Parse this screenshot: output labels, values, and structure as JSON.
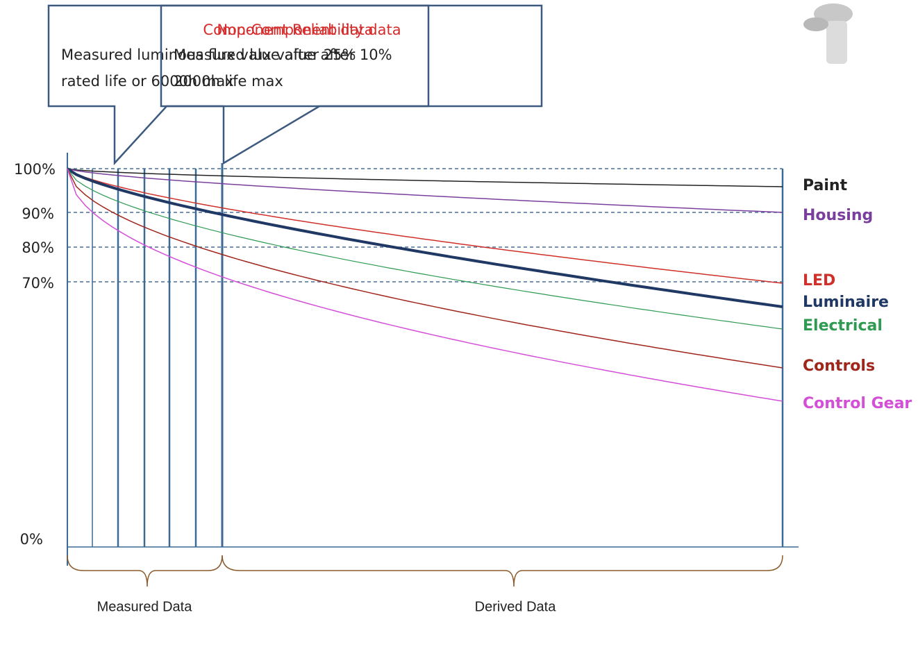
{
  "callouts": [
    {
      "title": "Component Reliability data",
      "lines": [
        "Measured luminous flux value after 25%",
        "rated life or 6000h max"
      ]
    },
    {
      "title": "Non-Component data",
      "lines": [
        "Measured lux value after 10%",
        "2000h life max"
      ]
    }
  ],
  "y_axis_labels": [
    "100%",
    "90%",
    "80%",
    "70%",
    "0%"
  ],
  "curve_labels": [
    {
      "label": "Paint",
      "color": "#222222"
    },
    {
      "label": "Housing",
      "color": "#7a3f9d"
    },
    {
      "label": "LED",
      "color": "#d0302a"
    },
    {
      "label": "Luminaire",
      "color": "#1f3864"
    },
    {
      "label": "Electrical",
      "color": "#2e9a52"
    },
    {
      "label": "Controls",
      "color": "#a0261c"
    },
    {
      "label": "Control Gear",
      "color": "#d44fd8"
    }
  ],
  "braces": [
    "Measured Data",
    "Derived Data"
  ]
}
